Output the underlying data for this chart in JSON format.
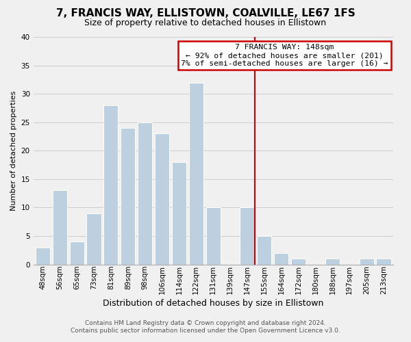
{
  "title": "7, FRANCIS WAY, ELLISTOWN, COALVILLE, LE67 1FS",
  "subtitle": "Size of property relative to detached houses in Ellistown",
  "xlabel": "Distribution of detached houses by size in Ellistown",
  "ylabel": "Number of detached properties",
  "bar_labels": [
    "48sqm",
    "56sqm",
    "65sqm",
    "73sqm",
    "81sqm",
    "89sqm",
    "98sqm",
    "106sqm",
    "114sqm",
    "122sqm",
    "131sqm",
    "139sqm",
    "147sqm",
    "155sqm",
    "164sqm",
    "172sqm",
    "180sqm",
    "188sqm",
    "197sqm",
    "205sqm",
    "213sqm"
  ],
  "bar_values": [
    3,
    13,
    4,
    9,
    28,
    24,
    25,
    23,
    18,
    32,
    10,
    0,
    10,
    5,
    2,
    1,
    0,
    1,
    0,
    1,
    1
  ],
  "bar_color": "#bdd0e0",
  "bar_edge_color": "#ffffff",
  "vline_color": "#cc0000",
  "annotation_title": "7 FRANCIS WAY: 148sqm",
  "annotation_line1": "← 92% of detached houses are smaller (201)",
  "annotation_line2": "7% of semi-detached houses are larger (16) →",
  "annotation_box_facecolor": "#ffffff",
  "annotation_box_edgecolor": "#cc0000",
  "ylim": [
    0,
    40
  ],
  "yticks": [
    0,
    5,
    10,
    15,
    20,
    25,
    30,
    35,
    40
  ],
  "footer1": "Contains HM Land Registry data © Crown copyright and database right 2024.",
  "footer2": "Contains public sector information licensed under the Open Government Licence v3.0.",
  "grid_color": "#cccccc",
  "background_color": "#f0f0f0",
  "title_fontsize": 11,
  "subtitle_fontsize": 9,
  "xlabel_fontsize": 9,
  "ylabel_fontsize": 8,
  "tick_fontsize": 7.5,
  "footer_fontsize": 6.5
}
